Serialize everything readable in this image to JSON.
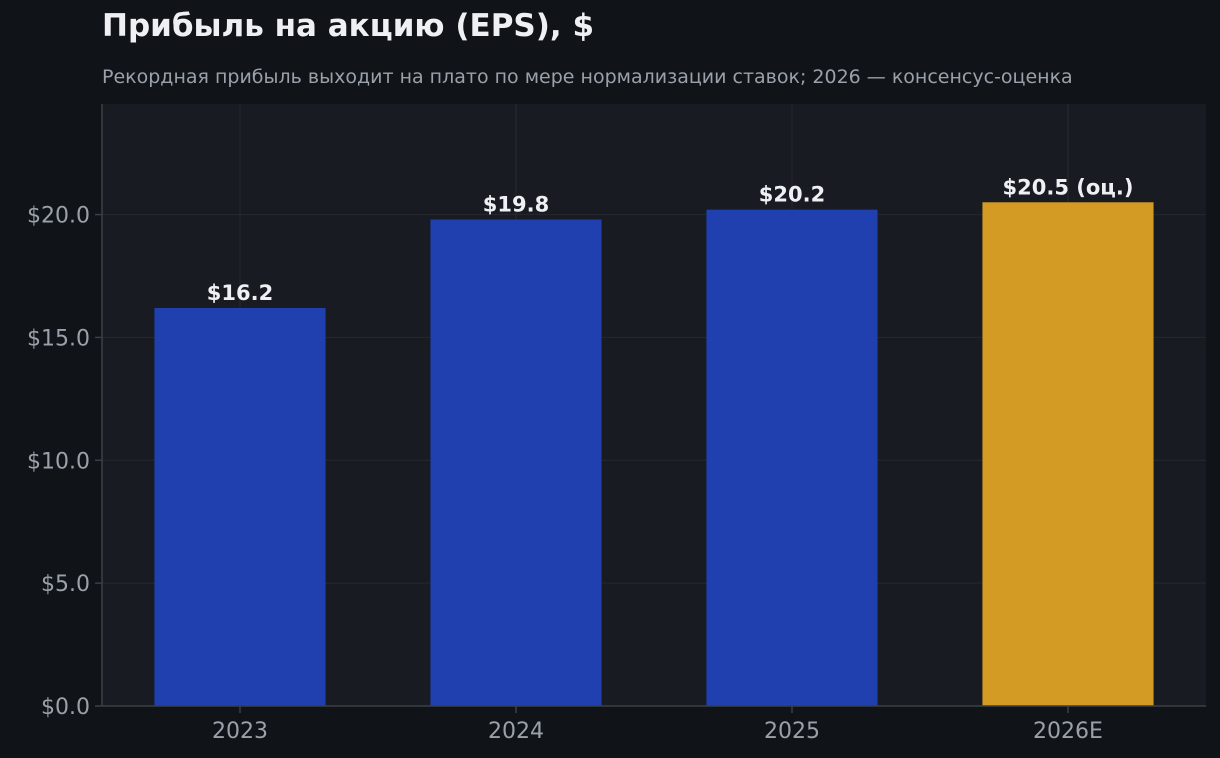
{
  "title": "Прибыль на акцию (EPS), $",
  "subtitle": "Рекордная прибыль выходит на плато по мере нормализации ставок; 2026 — консенсус-оценка",
  "colors": {
    "background": "#101418",
    "plot_background": "#181b21",
    "actual_bar": "#1f40ae",
    "estimate_bar": "#d39b24",
    "grid": "#262a31",
    "axis": "#3a3f47"
  },
  "chart_data": {
    "type": "bar",
    "title": "Прибыль на акцию (EPS), $",
    "subtitle": "Рекордная прибыль выходит на плато по мере нормализации ставок; 2026 — консенсус-оценка",
    "categories": [
      "2023",
      "2024",
      "2025",
      "2026E"
    ],
    "values": [
      16.2,
      19.8,
      20.2,
      20.5
    ],
    "data_labels": [
      "$16.2",
      "$19.8",
      "$20.2",
      "$20.5 (оц.)"
    ],
    "estimate": [
      false,
      false,
      false,
      true
    ],
    "yticks": [
      0,
      5,
      10,
      15,
      20
    ],
    "ytick_labels": [
      "$0.0",
      "$5.0",
      "$10.0",
      "$15.0",
      "$20.0"
    ],
    "ylim": [
      0,
      24.5
    ],
    "xlabel": "",
    "ylabel": "",
    "grid": true,
    "legend": "none"
  }
}
